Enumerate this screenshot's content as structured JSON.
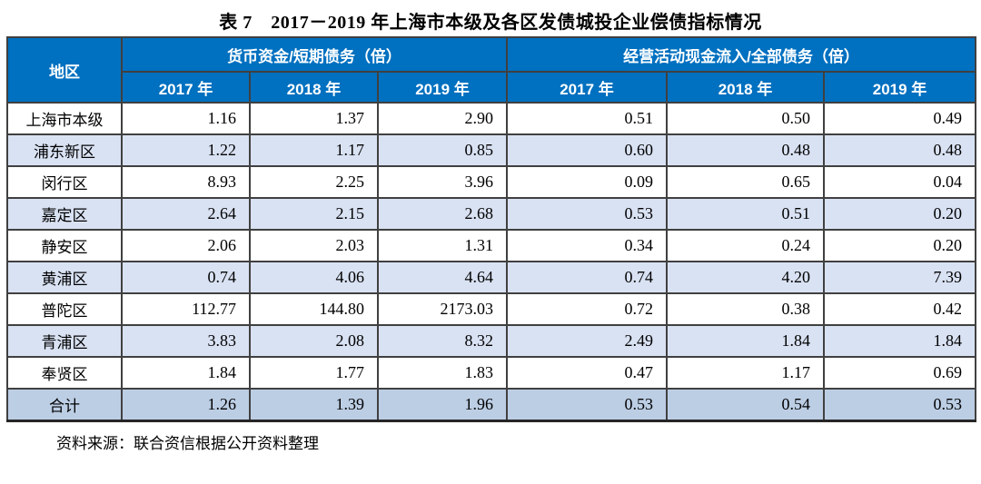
{
  "title": "表 7　2017－2019 年上海市本级及各区发债城投企业偿债指标情况",
  "table": {
    "region_header": "地区",
    "group_headers": [
      "货币资金/短期债务（倍）",
      "经营活动现金流入/全部债务（倍）"
    ],
    "year_headers": [
      "2017 年",
      "2018 年",
      "2019 年",
      "2017 年",
      "2018 年",
      "2019 年"
    ],
    "rows": [
      {
        "region": "上海市本级",
        "values": [
          "1.16",
          "1.37",
          "2.90",
          "0.51",
          "0.50",
          "0.49"
        ]
      },
      {
        "region": "浦东新区",
        "values": [
          "1.22",
          "1.17",
          "0.85",
          "0.60",
          "0.48",
          "0.48"
        ]
      },
      {
        "region": "闵行区",
        "values": [
          "8.93",
          "2.25",
          "3.96",
          "0.09",
          "0.65",
          "0.04"
        ]
      },
      {
        "region": "嘉定区",
        "values": [
          "2.64",
          "2.15",
          "2.68",
          "0.53",
          "0.51",
          "0.20"
        ]
      },
      {
        "region": "静安区",
        "values": [
          "2.06",
          "2.03",
          "1.31",
          "0.34",
          "0.24",
          "0.20"
        ]
      },
      {
        "region": "黄浦区",
        "values": [
          "0.74",
          "4.06",
          "4.64",
          "0.74",
          "4.20",
          "7.39"
        ]
      },
      {
        "region": "普陀区",
        "values": [
          "112.77",
          "144.80",
          "2173.03",
          "0.72",
          "0.38",
          "0.42"
        ]
      },
      {
        "region": "青浦区",
        "values": [
          "3.83",
          "2.08",
          "8.32",
          "2.49",
          "1.84",
          "1.84"
        ]
      },
      {
        "region": "奉贤区",
        "values": [
          "1.84",
          "1.77",
          "1.83",
          "0.47",
          "1.17",
          "0.69"
        ]
      },
      {
        "region": "合计",
        "values": [
          "1.26",
          "1.39",
          "1.96",
          "0.53",
          "0.54",
          "0.53"
        ]
      }
    ],
    "total_row_label": "合计"
  },
  "source_note": "资料来源：联合资信根据公开资料整理",
  "colors": {
    "header_bg": "#0070C0",
    "header_text": "#FFFFFF",
    "row_alt_bg": "#D9E2F3",
    "total_row_bg": "#BCCEE4",
    "grid_border": "#404040",
    "outer_border": "#262626",
    "body_text": "#000000"
  }
}
